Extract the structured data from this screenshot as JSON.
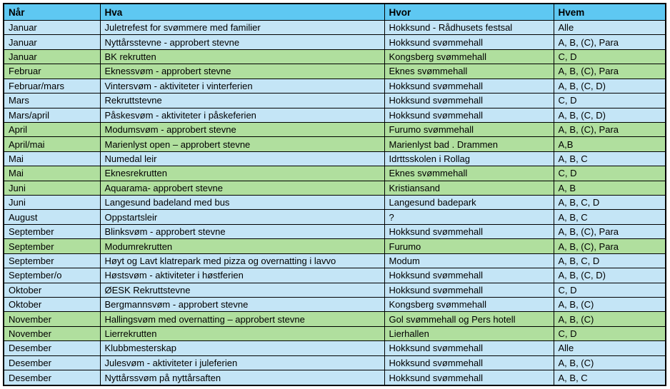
{
  "colors": {
    "header_bg": "#5EC8F2",
    "row_blue": "#C4E5F6",
    "row_green": "#B0DF9E",
    "border": "#000000",
    "text": "#000000"
  },
  "table": {
    "columns": [
      "Når",
      "Hva",
      "Hvor",
      "Hvem"
    ],
    "rows": [
      {
        "nar": "Januar",
        "hva": "Juletrefest for svømmere med familier",
        "hvor": "Hokksund - Rådhusets festsal",
        "hvem": "Alle",
        "color": "blue"
      },
      {
        "nar": "Januar",
        "hva": "Nyttårsstevne - approbert stevne",
        "hvor": "Hokksund svømmehall",
        "hvem": "A, B, (C), Para",
        "color": "blue"
      },
      {
        "nar": "Januar",
        "hva": "BK rekrutten",
        "hvor": "Kongsberg svømmehall",
        "hvem": "C, D",
        "color": "green"
      },
      {
        "nar": "Februar",
        "hva": "Eknessvøm - approbert stevne",
        "hvor": "Eknes svømmehall",
        "hvem": "A, B, (C), Para",
        "color": "green"
      },
      {
        "nar": "Februar/mars",
        "hva": "Vintersvøm - aktiviteter i vinterferien",
        "hvor": "Hokksund svømmehall",
        "hvem": "A, B, (C, D)",
        "color": "blue"
      },
      {
        "nar": "Mars",
        "hva": "Rekruttstevne",
        "hvor": "Hokksund svømmehall",
        "hvem": "C, D",
        "color": "blue"
      },
      {
        "nar": "Mars/april",
        "hva": "Påskesvøm - aktiviteter i påskeferien",
        "hvor": "Hokksund svømmehall",
        "hvem": "A, B, (C, D)",
        "color": "blue"
      },
      {
        "nar": "April",
        "hva": "Modumsvøm - approbert stevne",
        "hvor": "Furumo svømmehall",
        "hvem": "A, B, (C), Para",
        "color": "green"
      },
      {
        "nar": "April/mai",
        "hva": "Marienlyst open – approbert stevne",
        "hvor": "Marienlyst bad . Drammen",
        "hvem": "A,B",
        "color": "green"
      },
      {
        "nar": "Mai",
        "hva": "Numedal leir",
        "hvor": "Idrttsskolen i Rollag",
        "hvem": "A, B, C",
        "color": "blue"
      },
      {
        "nar": "Mai",
        "hva": "Eknesrekrutten",
        "hvor": "Eknes svømmehall",
        "hvem": "C, D",
        "color": "green"
      },
      {
        "nar": "Juni",
        "hva": "Aquarama- approbert stevne",
        "hvor": "Kristiansand",
        "hvem": "A, B",
        "color": "green"
      },
      {
        "nar": "Juni",
        "hva": "Langesund badeland med bus",
        "hvor": "Langesund badepark",
        "hvem": "A, B, C, D",
        "color": "blue"
      },
      {
        "nar": "August",
        "hva": "Oppstartsleir",
        "hvor": "?",
        "hvem": "A, B, C",
        "color": "blue"
      },
      {
        "nar": "September",
        "hva": "Blinksvøm - approbert stevne",
        "hvor": "Hokksund svømmehall",
        "hvem": "A, B, (C), Para",
        "color": "blue"
      },
      {
        "nar": "September",
        "hva": "Modumrekrutten",
        "hvor": "Furumo",
        "hvem": "A, B, (C), Para",
        "color": "green"
      },
      {
        "nar": "September",
        "hva": "Høyt og Lavt klatrepark med pizza og overnatting i lavvo",
        "hvor": "Modum",
        "hvem": "A, B, C, D",
        "color": "blue"
      },
      {
        "nar": "September/o",
        "hva": "Høstsvøm - aktiviteter i høstferien",
        "hvor": "Hokksund svømmehall",
        "hvem": "A, B, (C, D)",
        "color": "blue"
      },
      {
        "nar": "Oktober",
        "hva": "ØESK Rekruttstevne",
        "hvor": "Hokksund svømmehall",
        "hvem": "C, D",
        "color": "blue"
      },
      {
        "nar": "Oktober",
        "hva": "Bergmannsvøm - approbert stevne",
        "hvor": "Kongsberg svømmehall",
        "hvem": "A, B, (C)",
        "color": "blue"
      },
      {
        "nar": "November",
        "hva": "Hallingsvøm med overnatting – approbert stevne",
        "hvor": "Gol svømmehall og Pers hotell",
        "hvem": "A, B, (C)",
        "color": "green"
      },
      {
        "nar": "November",
        "hva": "Lierrekrutten",
        "hvor": "Lierhallen",
        "hvem": "C, D",
        "color": "green"
      },
      {
        "nar": "Desember",
        "hva": "Klubbmesterskap",
        "hvor": "Hokksund svømmehall",
        "hvem": "Alle",
        "color": "blue"
      },
      {
        "nar": "Desember",
        "hva": "Julesvøm - aktiviteter i juleferien",
        "hvor": "Hokksund svømmehall",
        "hvem": "A, B, (C)",
        "color": "blue"
      },
      {
        "nar": "Desember",
        "hva": "Nyttårssvøm på nyttårsaften",
        "hvor": "Hokksund svømmehall",
        "hvem": "A, B, C",
        "color": "blue"
      }
    ]
  }
}
